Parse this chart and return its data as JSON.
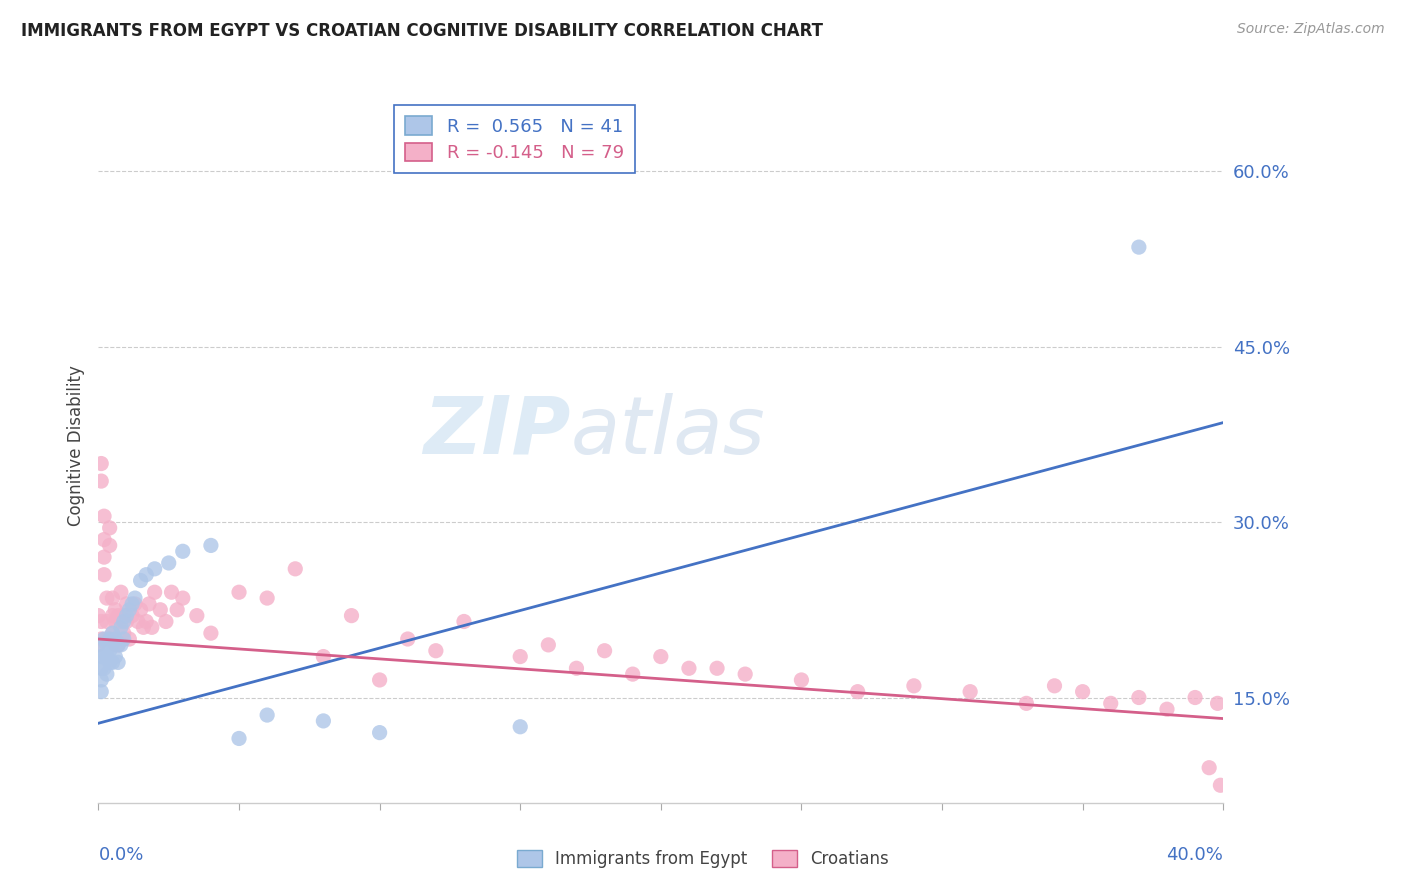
{
  "title": "IMMIGRANTS FROM EGYPT VS CROATIAN COGNITIVE DISABILITY CORRELATION CHART",
  "source": "Source: ZipAtlas.com",
  "ylabel": "Cognitive Disability",
  "y_ticks": [
    0.15,
    0.3,
    0.45,
    0.6
  ],
  "y_tick_labels": [
    "15.0%",
    "30.0%",
    "45.0%",
    "60.0%"
  ],
  "xlim": [
    0.0,
    0.4
  ],
  "ylim": [
    0.06,
    0.67
  ],
  "legend": [
    {
      "label": "R =  0.565   N = 41",
      "color": "#4472c4"
    },
    {
      "label": "R = -0.145   N = 79",
      "color": "#d45f8a"
    }
  ],
  "series1_color": "#aec6e8",
  "series2_color": "#f4b0c8",
  "trendline1_color": "#4472c4",
  "trendline2_color": "#d45f8a",
  "watermark_zip": "ZIP",
  "watermark_atlas": "atlas",
  "blue_scatter_x": [
    0.0,
    0.001,
    0.001,
    0.001,
    0.001,
    0.002,
    0.002,
    0.002,
    0.003,
    0.003,
    0.003,
    0.004,
    0.004,
    0.004,
    0.005,
    0.005,
    0.005,
    0.006,
    0.006,
    0.007,
    0.007,
    0.008,
    0.008,
    0.009,
    0.009,
    0.01,
    0.011,
    0.012,
    0.013,
    0.015,
    0.017,
    0.02,
    0.025,
    0.03,
    0.04,
    0.05,
    0.06,
    0.08,
    0.1,
    0.15,
    0.37
  ],
  "blue_scatter_y": [
    0.195,
    0.185,
    0.175,
    0.165,
    0.155,
    0.2,
    0.185,
    0.175,
    0.195,
    0.185,
    0.17,
    0.2,
    0.19,
    0.18,
    0.205,
    0.195,
    0.18,
    0.2,
    0.185,
    0.195,
    0.18,
    0.21,
    0.195,
    0.215,
    0.2,
    0.22,
    0.225,
    0.23,
    0.235,
    0.25,
    0.255,
    0.26,
    0.265,
    0.275,
    0.28,
    0.115,
    0.135,
    0.13,
    0.12,
    0.125,
    0.535
  ],
  "pink_scatter_x": [
    0.0,
    0.0,
    0.001,
    0.001,
    0.001,
    0.001,
    0.002,
    0.002,
    0.002,
    0.002,
    0.003,
    0.003,
    0.003,
    0.004,
    0.004,
    0.004,
    0.005,
    0.005,
    0.005,
    0.006,
    0.006,
    0.006,
    0.007,
    0.007,
    0.008,
    0.008,
    0.009,
    0.009,
    0.01,
    0.01,
    0.011,
    0.012,
    0.013,
    0.014,
    0.015,
    0.016,
    0.017,
    0.018,
    0.019,
    0.02,
    0.022,
    0.024,
    0.026,
    0.028,
    0.03,
    0.035,
    0.04,
    0.05,
    0.06,
    0.07,
    0.08,
    0.09,
    0.1,
    0.11,
    0.12,
    0.13,
    0.15,
    0.16,
    0.17,
    0.18,
    0.19,
    0.2,
    0.21,
    0.22,
    0.23,
    0.25,
    0.27,
    0.29,
    0.31,
    0.33,
    0.34,
    0.35,
    0.36,
    0.37,
    0.38,
    0.39,
    0.395,
    0.398,
    0.399
  ],
  "pink_scatter_y": [
    0.22,
    0.195,
    0.215,
    0.2,
    0.335,
    0.35,
    0.285,
    0.305,
    0.255,
    0.27,
    0.2,
    0.235,
    0.215,
    0.28,
    0.295,
    0.2,
    0.22,
    0.235,
    0.205,
    0.225,
    0.195,
    0.215,
    0.22,
    0.195,
    0.215,
    0.24,
    0.205,
    0.22,
    0.215,
    0.23,
    0.2,
    0.22,
    0.23,
    0.215,
    0.225,
    0.21,
    0.215,
    0.23,
    0.21,
    0.24,
    0.225,
    0.215,
    0.24,
    0.225,
    0.235,
    0.22,
    0.205,
    0.24,
    0.235,
    0.26,
    0.185,
    0.22,
    0.165,
    0.2,
    0.19,
    0.215,
    0.185,
    0.195,
    0.175,
    0.19,
    0.17,
    0.185,
    0.175,
    0.175,
    0.17,
    0.165,
    0.155,
    0.16,
    0.155,
    0.145,
    0.16,
    0.155,
    0.145,
    0.15,
    0.14,
    0.15,
    0.09,
    0.145,
    0.075
  ],
  "trendline1_x": [
    0.0,
    0.4
  ],
  "trendline1_y": [
    0.128,
    0.385
  ],
  "trendline2_x": [
    0.0,
    0.4
  ],
  "trendline2_y": [
    0.2,
    0.132
  ]
}
